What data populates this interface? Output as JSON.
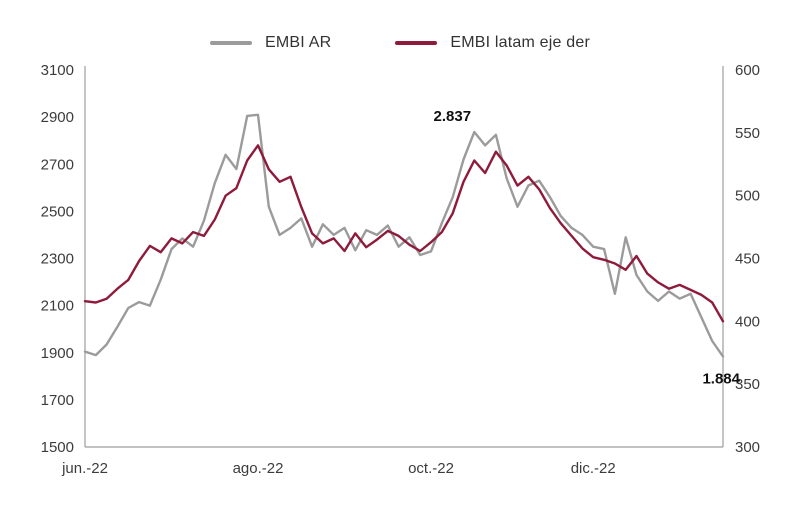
{
  "colors": {
    "background": "#ffffff",
    "axis": "#9d9d9d",
    "tick_text": "#3c3c3c",
    "annotation_text": "#111111"
  },
  "chart_data": {
    "type": "line",
    "title": "",
    "grid": false,
    "legend_position": "top",
    "x_labels": [
      {
        "label": "jun.-22",
        "index": 0
      },
      {
        "label": "ago.-22",
        "index": 16
      },
      {
        "label": "oct.-22",
        "index": 32
      },
      {
        "label": "dic.-22",
        "index": 47
      }
    ],
    "axes": {
      "left": {
        "min": 1500,
        "max": 3100,
        "step": 200,
        "ticks": [
          1500,
          1700,
          1900,
          2100,
          2300,
          2500,
          2700,
          2900,
          3100
        ]
      },
      "right": {
        "min": 300,
        "max": 600,
        "step": 50,
        "ticks": [
          300,
          350,
          400,
          450,
          500,
          550,
          600
        ]
      }
    },
    "series": [
      {
        "name": "EMBI AR",
        "axis": "left",
        "color": "#9B9B9B",
        "values": [
          1905,
          1890,
          1935,
          2010,
          2090,
          2115,
          2100,
          2210,
          2340,
          2385,
          2350,
          2460,
          2620,
          2740,
          2680,
          2905,
          2910,
          2520,
          2400,
          2430,
          2470,
          2350,
          2445,
          2400,
          2430,
          2335,
          2420,
          2400,
          2440,
          2350,
          2390,
          2315,
          2330,
          2450,
          2560,
          2720,
          2837,
          2780,
          2825,
          2640,
          2520,
          2610,
          2630,
          2560,
          2480,
          2430,
          2400,
          2350,
          2340,
          2150,
          2390,
          2230,
          2160,
          2120,
          2160,
          2130,
          2150,
          2050,
          1950,
          1884
        ]
      },
      {
        "name": "EMBI latam eje der",
        "axis": "right",
        "color": "#8E1B3B",
        "values": [
          416,
          415,
          418,
          426,
          433,
          448,
          460,
          455,
          466,
          462,
          471,
          468,
          481,
          500,
          506,
          528,
          540,
          521,
          511,
          515,
          491,
          470,
          462,
          466,
          456,
          470,
          459,
          465,
          472,
          468,
          461,
          456,
          463,
          471,
          486,
          511,
          528,
          518,
          535,
          524,
          508,
          515,
          505,
          490,
          478,
          468,
          458,
          451,
          449,
          446,
          441,
          452,
          438,
          431,
          426,
          429,
          425,
          421,
          415,
          400
        ]
      }
    ],
    "annotations": [
      {
        "text": "2.837",
        "series_index": 0,
        "point_index": 36,
        "position": "above"
      },
      {
        "text": "1.884",
        "series_index": 0,
        "point_index": 59,
        "position": "below"
      }
    ]
  }
}
